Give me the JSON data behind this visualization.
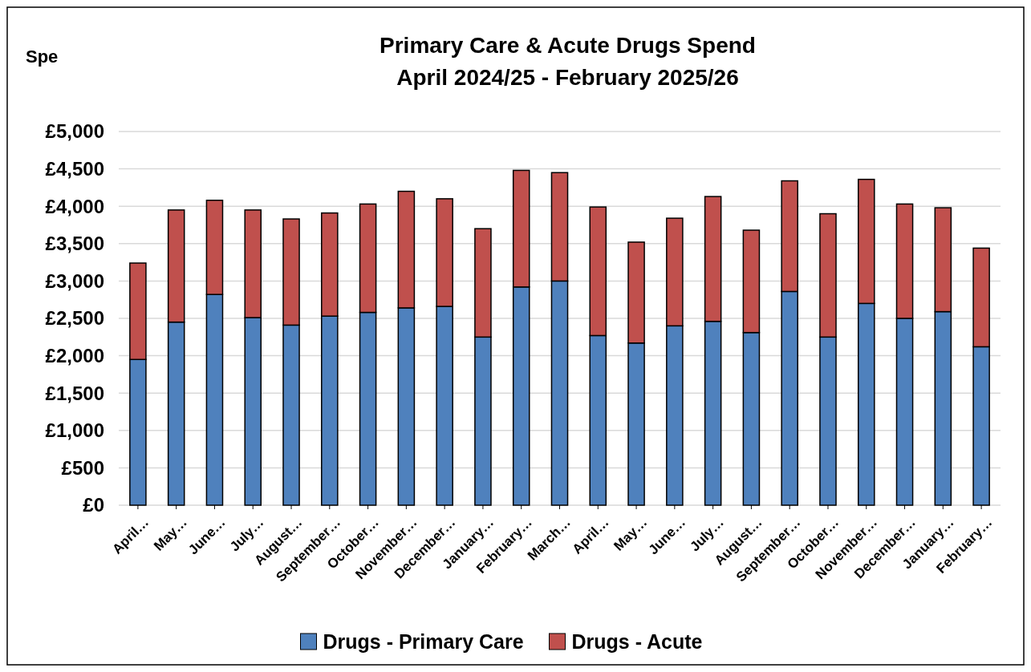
{
  "chart_data": {
    "type": "bar",
    "title": "Primary Care & Acute Drugs Spend\nApril 2024/25 - February 2025/26",
    "ylabel": "Spe",
    "categories": [
      "April…",
      "May…",
      "June…",
      "July…",
      "August…",
      "September…",
      "October…",
      "November…",
      "December…",
      "January…",
      "February…",
      "March…",
      "April…",
      "May…",
      "June…",
      "July…",
      "August…",
      "September…",
      "October…",
      "November…",
      "December…",
      "January…",
      "February…"
    ],
    "stacked": true,
    "series": [
      {
        "name": "Drugs - Primary Care",
        "color": "#4f81bd",
        "values": [
          1950,
          2450,
          2820,
          2510,
          2410,
          2530,
          2580,
          2640,
          2660,
          2250,
          2920,
          3000,
          2270,
          2170,
          2400,
          2460,
          2310,
          2860,
          2250,
          2700,
          2500,
          2590,
          2120
        ]
      },
      {
        "name": "Drugs - Acute",
        "color": "#c0504d",
        "values": [
          1290,
          1500,
          1260,
          1440,
          1420,
          1380,
          1450,
          1560,
          1440,
          1450,
          1560,
          1450,
          1720,
          1350,
          1440,
          1670,
          1370,
          1480,
          1650,
          1660,
          1530,
          1390,
          1320
        ]
      }
    ],
    "ylim": [
      0,
      5000
    ],
    "yticks": [
      {
        "value": 0,
        "label": "£0"
      },
      {
        "value": 500,
        "label": "£500"
      },
      {
        "value": 1000,
        "label": "£1,000"
      },
      {
        "value": 1500,
        "label": "£1,500"
      },
      {
        "value": 2000,
        "label": "£2,000"
      },
      {
        "value": 2500,
        "label": "£2,500"
      },
      {
        "value": 3000,
        "label": "£3,000"
      },
      {
        "value": 3500,
        "label": "£3,500"
      },
      {
        "value": 4000,
        "label": "£4,000"
      },
      {
        "value": 4500,
        "label": "£4,500"
      },
      {
        "value": 5000,
        "label": "£5,000"
      }
    ],
    "grid": "y",
    "legend": "bottom"
  }
}
